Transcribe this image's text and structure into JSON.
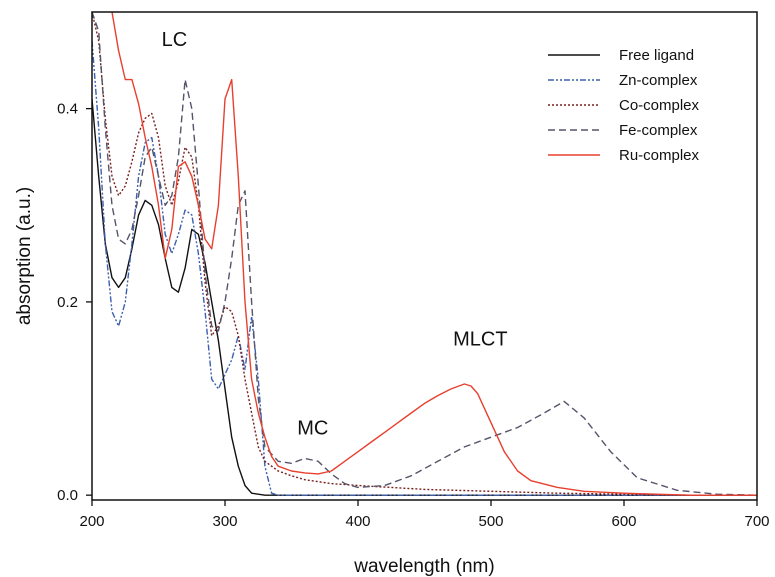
{
  "chart_data": {
    "type": "line",
    "xlabel": "wavelength (nm)",
    "ylabel": "absorption (a.u.)",
    "xlim": [
      200,
      700
    ],
    "ylim": [
      -0.005,
      0.5
    ],
    "xticks": [
      200,
      300,
      400,
      500,
      600,
      700
    ],
    "yticks": [
      0.0,
      0.2,
      0.4
    ],
    "ytick_labels": [
      "0.0",
      "0.2",
      "0.4"
    ],
    "grid": false,
    "legend_position": "top-right",
    "annotations": [
      {
        "text": "LC",
        "x": 262,
        "y": 0.465
      },
      {
        "text": "MC",
        "x": 366,
        "y": 0.063
      },
      {
        "text": "MLCT",
        "x": 492,
        "y": 0.155
      }
    ],
    "series": [
      {
        "name": "Free ligand",
        "color": "#111111",
        "dash": "solid",
        "x": [
          200,
          205,
          210,
          215,
          220,
          225,
          230,
          235,
          240,
          245,
          250,
          255,
          260,
          265,
          270,
          275,
          280,
          285,
          290,
          295,
          300,
          305,
          310,
          315,
          320,
          330,
          340,
          700
        ],
        "y": [
          0.41,
          0.33,
          0.26,
          0.225,
          0.215,
          0.225,
          0.255,
          0.29,
          0.305,
          0.3,
          0.28,
          0.245,
          0.215,
          0.21,
          0.235,
          0.275,
          0.27,
          0.24,
          0.2,
          0.16,
          0.11,
          0.06,
          0.03,
          0.01,
          0.002,
          0.0,
          0.0,
          0.0
        ]
      },
      {
        "name": "Zn-complex",
        "color": "#3d5fb0",
        "dash": "6,2,2,2,2,2",
        "x": [
          200,
          205,
          210,
          215,
          220,
          225,
          230,
          235,
          240,
          245,
          250,
          255,
          260,
          265,
          270,
          275,
          280,
          285,
          290,
          295,
          300,
          305,
          310,
          315,
          320,
          325,
          330,
          335,
          340,
          700
        ],
        "y": [
          0.47,
          0.38,
          0.26,
          0.19,
          0.175,
          0.2,
          0.26,
          0.33,
          0.365,
          0.37,
          0.33,
          0.27,
          0.25,
          0.27,
          0.295,
          0.29,
          0.25,
          0.19,
          0.12,
          0.11,
          0.125,
          0.14,
          0.165,
          0.13,
          0.185,
          0.12,
          0.03,
          0.002,
          0.0,
          0.0
        ]
      },
      {
        "name": "Co-complex",
        "color": "#7a1f1f",
        "dash": "2,2",
        "x": [
          200,
          205,
          210,
          215,
          220,
          225,
          230,
          235,
          240,
          245,
          250,
          255,
          260,
          265,
          270,
          275,
          280,
          285,
          290,
          295,
          300,
          305,
          310,
          315,
          320,
          325,
          330,
          340,
          350,
          360,
          380,
          400,
          450,
          500,
          550,
          600,
          650,
          700
        ],
        "y": [
          0.5,
          0.47,
          0.39,
          0.33,
          0.31,
          0.32,
          0.345,
          0.375,
          0.39,
          0.395,
          0.37,
          0.32,
          0.3,
          0.325,
          0.36,
          0.35,
          0.3,
          0.22,
          0.165,
          0.175,
          0.195,
          0.19,
          0.165,
          0.12,
          0.085,
          0.05,
          0.035,
          0.025,
          0.02,
          0.016,
          0.012,
          0.01,
          0.006,
          0.004,
          0.002,
          0.001,
          0.0,
          0.0
        ]
      },
      {
        "name": "Fe-complex",
        "color": "#55556a",
        "dash": "7,4",
        "x": [
          200,
          205,
          210,
          215,
          220,
          225,
          230,
          235,
          240,
          245,
          250,
          255,
          260,
          265,
          270,
          275,
          280,
          285,
          290,
          295,
          300,
          305,
          310,
          315,
          320,
          325,
          330,
          340,
          350,
          360,
          370,
          380,
          390,
          400,
          420,
          440,
          460,
          480,
          500,
          520,
          540,
          555,
          570,
          590,
          610,
          640,
          670,
          700
        ],
        "y": [
          0.5,
          0.48,
          0.38,
          0.3,
          0.265,
          0.26,
          0.275,
          0.31,
          0.35,
          0.36,
          0.33,
          0.3,
          0.31,
          0.35,
          0.43,
          0.4,
          0.32,
          0.23,
          0.175,
          0.17,
          0.2,
          0.245,
          0.3,
          0.315,
          0.2,
          0.1,
          0.05,
          0.035,
          0.033,
          0.038,
          0.035,
          0.022,
          0.012,
          0.008,
          0.01,
          0.02,
          0.035,
          0.05,
          0.06,
          0.07,
          0.085,
          0.097,
          0.08,
          0.045,
          0.018,
          0.005,
          0.001,
          0.0
        ]
      },
      {
        "name": "Ru-complex",
        "color": "#e8402e",
        "dash": "solid",
        "x": [
          215,
          220,
          225,
          230,
          235,
          240,
          245,
          250,
          255,
          260,
          265,
          270,
          275,
          280,
          285,
          290,
          295,
          300,
          305,
          310,
          315,
          320,
          325,
          330,
          335,
          340,
          350,
          360,
          370,
          380,
          390,
          400,
          410,
          420,
          430,
          440,
          450,
          460,
          470,
          480,
          485,
          490,
          500,
          510,
          520,
          530,
          550,
          570,
          600,
          650,
          700
        ],
        "y": [
          0.5,
          0.46,
          0.43,
          0.43,
          0.405,
          0.37,
          0.34,
          0.3,
          0.245,
          0.275,
          0.34,
          0.345,
          0.33,
          0.3,
          0.265,
          0.255,
          0.3,
          0.41,
          0.43,
          0.33,
          0.2,
          0.12,
          0.085,
          0.06,
          0.04,
          0.03,
          0.025,
          0.023,
          0.022,
          0.025,
          0.035,
          0.045,
          0.055,
          0.065,
          0.075,
          0.085,
          0.095,
          0.103,
          0.11,
          0.115,
          0.113,
          0.105,
          0.075,
          0.045,
          0.025,
          0.015,
          0.008,
          0.004,
          0.002,
          0.0,
          0.0
        ]
      }
    ]
  }
}
